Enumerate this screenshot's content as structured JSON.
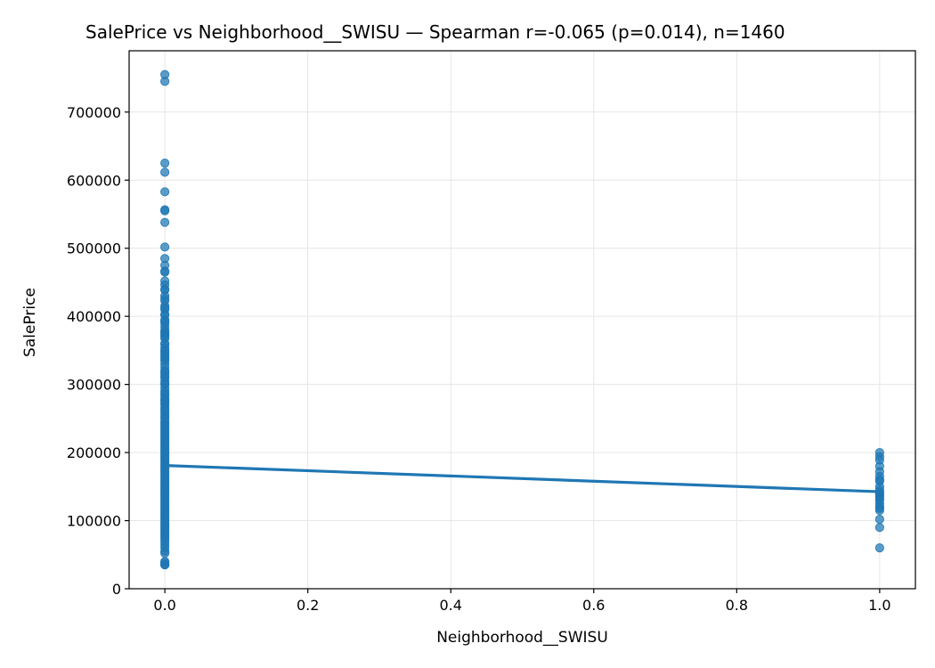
{
  "chart_data": {
    "type": "scatter",
    "title": "SalePrice vs Neighborhood__SWISU — Spearman r=-0.065 (p=0.014), n=1460",
    "xlabel": "Neighborhood__SWISU",
    "ylabel": "SalePrice",
    "xlim": [
      -0.05,
      1.05
    ],
    "ylim": [
      0,
      790000
    ],
    "x_ticks": [
      0.0,
      0.2,
      0.4,
      0.6,
      0.8,
      1.0
    ],
    "x_tick_labels": [
      "0.0",
      "0.2",
      "0.4",
      "0.6",
      "0.8",
      "1.0"
    ],
    "y_ticks": [
      0,
      100000,
      200000,
      300000,
      400000,
      500000,
      600000,
      700000
    ],
    "y_tick_labels": [
      "0",
      "100000",
      "200000",
      "300000",
      "400000",
      "500000",
      "600000",
      "700000"
    ],
    "grid": true,
    "colors": {
      "points": "#1f77b4",
      "line": "#1f77b4"
    },
    "series": [
      {
        "kind": "points",
        "x": 0,
        "y": [
          755000,
          745000,
          625000,
          611657,
          582933,
          556581,
          555000,
          538000,
          501837,
          485000,
          475000,
          466500,
          465000,
          451950,
          446261,
          440000,
          438780,
          430000,
          426000,
          423000,
          415298,
          412500,
          410000,
          402861,
          402000,
          395192,
          392500,
          390000,
          385000,
          380000,
          377426,
          375000,
          372500,
          370878,
          367294,
          360000,
          359100,
          354000,
          350000,
          348000,
          345000,
          342643,
          340000,
          337500,
          335000,
          330000,
          325000,
          320000,
          318000,
          315000,
          311500,
          310000,
          305000,
          301000,
          300000,
          295000,
          290000,
          287000,
          284000,
          280000,
          277500,
          275000,
          272000,
          270000,
          266000,
          263000,
          260000,
          256000,
          253000,
          250000,
          246000,
          243000,
          240000,
          237000,
          234000,
          231000,
          228000,
          225000,
          222000,
          219000,
          216000,
          213000,
          210000,
          207000,
          204000,
          201000,
          198000,
          195000,
          192000,
          189000,
          186000,
          183000,
          180000,
          177000,
          174000,
          171000,
          168000,
          165000,
          162000,
          159000,
          156000,
          153000,
          150000,
          147000,
          144000,
          141000,
          138000,
          135000,
          132000,
          129000,
          126000,
          123000,
          120000,
          117000,
          114000,
          111000,
          108000,
          105000,
          102000,
          99000,
          96000,
          93000,
          90000,
          87000,
          84000,
          81000,
          78000,
          75000,
          72000,
          68000,
          64000,
          60000,
          55000,
          52000,
          40000,
          37900,
          35311,
          34900
        ]
      },
      {
        "kind": "points",
        "x": 1,
        "y": [
          200000,
          194000,
          189000,
          180000,
          172000,
          165000,
          160000,
          158000,
          150000,
          145000,
          142000,
          140000,
          138000,
          135000,
          132000,
          130000,
          125000,
          121000,
          118000,
          115000,
          102000,
          90000,
          60000
        ]
      },
      {
        "kind": "line",
        "name": "fit",
        "x": [
          0,
          1
        ],
        "y": [
          181000,
          142500
        ]
      }
    ]
  }
}
